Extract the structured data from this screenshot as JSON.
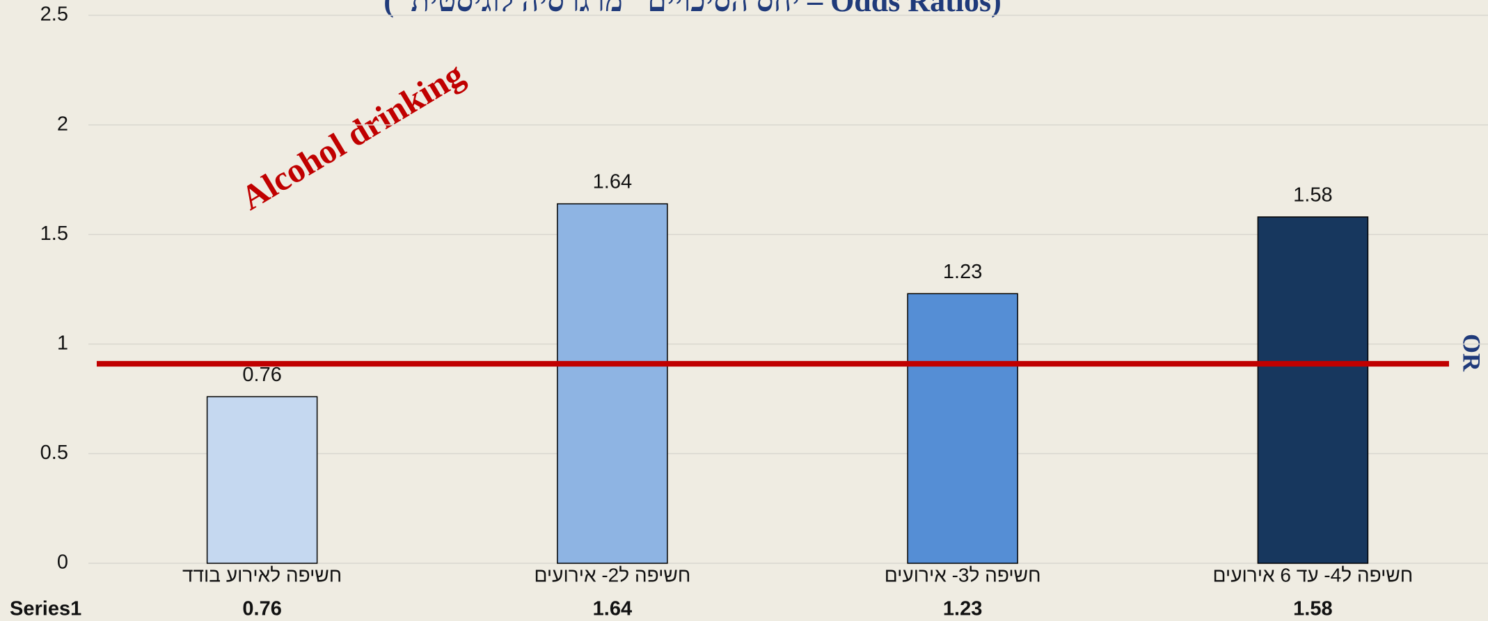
{
  "chart_data": {
    "type": "bar",
    "title": "(\"יחס הסיכויים\" מרגרסיה לוגיסטית – Odds Ratios)",
    "annotation": "Alcohol drinking",
    "y_label": "OR",
    "categories": [
      "חשיפה לאירוע בודד",
      "חשיפה ל2- אירועים",
      "חשיפה ל3- אירועים",
      "חשיפה ל4- עד 6 אירועים"
    ],
    "series": [
      {
        "name": "Series1",
        "values": [
          0.76,
          1.64,
          1.23,
          1.58
        ],
        "colors": [
          "#c5d8f0",
          "#8eb4e3",
          "#558ed5",
          "#17375e"
        ]
      }
    ],
    "reference_line": {
      "value": 0.91,
      "color": "#c00000"
    },
    "ylim": [
      0,
      2.5
    ],
    "yticks": [
      0,
      0.5,
      1,
      1.5,
      2,
      2.5
    ],
    "grid": true
  }
}
